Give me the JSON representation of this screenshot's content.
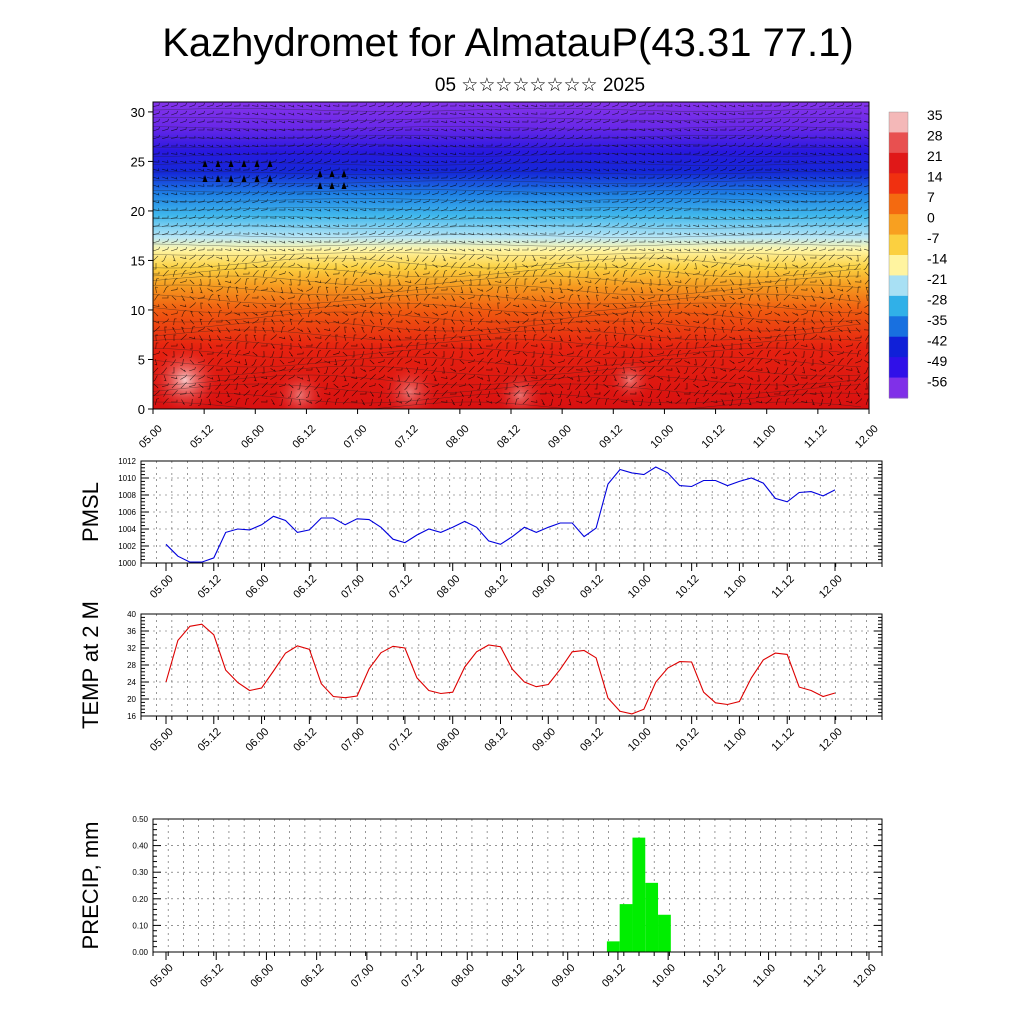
{
  "header": {
    "title": "Kazhydromet for AlmatauP(43.31 77.1)",
    "subtitle": "05 ☆☆☆☆☆☆☆☆ 2025"
  },
  "chart_data": [
    {
      "type": "heatmap",
      "name": "cross-section",
      "ylim": [
        0,
        31
      ],
      "yticks": [
        "0",
        "5",
        "10",
        "15",
        "20",
        "25",
        "30"
      ],
      "x_tick_labels": [
        "05.00",
        "05.12",
        "06.00",
        "06.12",
        "07.00",
        "07.12",
        "08.00",
        "08.12",
        "09.00",
        "09.12",
        "10.00",
        "10.12",
        "11.00",
        "11.12",
        "12.00"
      ],
      "colorbar": {
        "labels": [
          "35",
          "28",
          "21",
          "14",
          "7",
          "0",
          "-7",
          "-14",
          "-21",
          "-28",
          "-35",
          "-42",
          "-49",
          "-56"
        ],
        "colors": [
          "#f4b8b8",
          "#e85050",
          "#e01818",
          "#f03010",
          "#f46a10",
          "#f8a020",
          "#fbd040",
          "#fff4a0",
          "#a8e0f4",
          "#30b0e8",
          "#1870e0",
          "#1020d8",
          "#3010e8",
          "#8030e8"
        ]
      }
    },
    {
      "type": "line",
      "name": "pmsl",
      "ylabel": "PMSL",
      "ylim": [
        1000,
        1012
      ],
      "yticks": [
        "1000",
        "1002",
        "1004",
        "1006",
        "1008",
        "1010",
        "1012"
      ],
      "x_tick_labels": [
        "05.00",
        "05.12",
        "06.00",
        "06.12",
        "07.00",
        "07.12",
        "08.00",
        "08.12",
        "09.00",
        "09.12",
        "10.00",
        "10.12",
        "11.00",
        "11.12",
        "12.00"
      ],
      "color": "#0000dd",
      "values": [
        1002.2,
        1000.8,
        1000.1,
        1000.1,
        1000.6,
        1003.6,
        1004.0,
        1003.9,
        1004.5,
        1005.5,
        1005.0,
        1003.6,
        1003.9,
        1005.3,
        1005.3,
        1004.5,
        1005.2,
        1005.1,
        1004.2,
        1002.8,
        1002.4,
        1003.3,
        1004.0,
        1003.6,
        1004.2,
        1004.9,
        1004.2,
        1002.6,
        1002.2,
        1003.1,
        1004.2,
        1003.6,
        1004.2,
        1004.7,
        1004.7,
        1003.1,
        1004.1,
        1009.3,
        1011.0,
        1010.6,
        1010.4,
        1011.3,
        1010.6,
        1009.1,
        1009.0,
        1009.7,
        1009.7,
        1009.1,
        1009.6,
        1010.0,
        1009.4,
        1007.6,
        1007.2,
        1008.3,
        1008.4,
        1007.9,
        1008.6
      ]
    },
    {
      "type": "line",
      "name": "temp2m",
      "ylabel": "TEMP at 2 M",
      "ylim": [
        16,
        40
      ],
      "yticks": [
        "16",
        "20",
        "24",
        "28",
        "32",
        "36",
        "40"
      ],
      "x_tick_labels": [
        "05.00",
        "05.12",
        "06.00",
        "06.12",
        "07.00",
        "07.12",
        "08.00",
        "08.12",
        "09.00",
        "09.12",
        "10.00",
        "10.12",
        "11.00",
        "11.12",
        "12.00"
      ],
      "color": "#dd0000",
      "values": [
        24.0,
        33.8,
        37.1,
        37.6,
        35.1,
        26.8,
        23.9,
        22.0,
        22.6,
        26.6,
        30.8,
        32.5,
        31.7,
        23.6,
        20.6,
        20.3,
        20.7,
        27.1,
        30.9,
        32.4,
        32.0,
        25.0,
        22.0,
        21.3,
        21.6,
        27.5,
        31.1,
        32.7,
        32.3,
        27.0,
        24.0,
        22.9,
        23.4,
        27.0,
        31.1,
        31.4,
        29.7,
        20.2,
        17.1,
        16.5,
        17.6,
        24.0,
        27.3,
        28.8,
        28.7,
        21.6,
        19.1,
        18.7,
        19.4,
        25.0,
        29.2,
        30.8,
        30.5,
        22.8,
        22.0,
        20.6,
        21.4
      ]
    },
    {
      "type": "bar",
      "name": "precip",
      "ylabel": "PRECIP, mm",
      "ylim": [
        0,
        0.5
      ],
      "yticks": [
        "0.00",
        "0.10",
        "0.20",
        "0.30",
        "0.40",
        "0.50"
      ],
      "x_tick_labels": [
        "05.00",
        "05.12",
        "06.00",
        "06.12",
        "07.00",
        "07.12",
        "08.00",
        "08.12",
        "09.00",
        "09.12",
        "10.00",
        "10.12",
        "11.00",
        "11.12",
        "12.00"
      ],
      "color": "#00ee00",
      "values": [
        0,
        0,
        0,
        0,
        0,
        0,
        0,
        0,
        0,
        0,
        0,
        0,
        0,
        0,
        0,
        0,
        0,
        0,
        0,
        0,
        0,
        0,
        0,
        0,
        0,
        0,
        0,
        0,
        0,
        0,
        0,
        0,
        0,
        0,
        0,
        0,
        0.04,
        0.18,
        0.43,
        0.26,
        0.14,
        0,
        0,
        0,
        0,
        0,
        0,
        0,
        0,
        0,
        0,
        0,
        0,
        0,
        0,
        0,
        0
      ]
    }
  ]
}
